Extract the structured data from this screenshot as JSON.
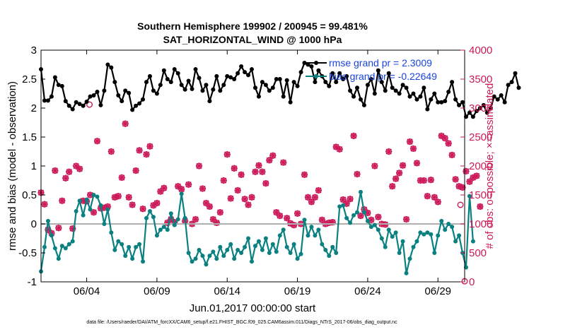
{
  "chart_data": {
    "type": "line",
    "title": "Southern Hemisphere 199902 / 200945 = 99.481%",
    "subtitle": "SAT_HORIZONTAL_WIND @ 1000 hPa",
    "xlabel": "Jun.01,2017 00:00:00 start",
    "ylabel_left": "rmse and bias (model - observation)",
    "ylabel_right": "# of obs: o=possible; ×=assimilated",
    "xlim": [
      0.75,
      30.9
    ],
    "ylim_left": [
      -1,
      3
    ],
    "ylim_right": [
      0,
      4000
    ],
    "x_ticks": [
      4,
      9,
      14,
      19,
      24,
      29
    ],
    "x_tick_labels": [
      "06/04",
      "06/09",
      "06/14",
      "06/19",
      "06/24",
      "06/29"
    ],
    "y_ticks_left": [
      -1,
      -0.5,
      0,
      0.5,
      1,
      1.5,
      2,
      2.5,
      3
    ],
    "y_tick_labels_left": [
      "-1",
      "-0.5",
      "0",
      "0.5",
      "1",
      "1.5",
      "2",
      "2.5",
      "3"
    ],
    "y_ticks_right": [
      0,
      500,
      1000,
      1500,
      2000,
      2500,
      3000,
      3500,
      4000
    ],
    "y_tick_labels_right": [
      "0",
      "500",
      "1000",
      "1500",
      "2000",
      "2500",
      "3000",
      "3500",
      "4000"
    ],
    "zero_line": 0,
    "legend": [
      {
        "label": "rmse grand pr = 2.3009",
        "color": "#000000"
      },
      {
        "label": "bias grand pr = -0.22649",
        "color": "#0a8080"
      }
    ],
    "legend_position": "top-right",
    "footer": "data file: /Users/raeder/DAI/ATM_forcXX/CAM6_setup/f.e21.FHIST_BGC.f09_025.CAM6assim.011/Diags_NTrS_2017-06/obs_diag_output.nc",
    "colors": {
      "rmse": "#000000",
      "bias": "#0a8080",
      "obs": "#cc1a5a",
      "zero_line": "#b0b0b0"
    },
    "x_start": 0.75,
    "x_step": 0.25,
    "series": [
      {
        "name": "rmse",
        "axis": "left",
        "values": [
          2.67,
          2.13,
          2.13,
          2.2,
          2.53,
          2.4,
          2.38,
          2.12,
          2.04,
          1.98,
          2.1,
          2.07,
          2.04,
          2.11,
          2.2,
          2.22,
          2.28,
          2.05,
          2.3,
          2.75,
          2.7,
          2.45,
          2.22,
          2.12,
          2.3,
          2.26,
          1.97,
          2.04,
          2.08,
          2.15,
          2.45,
          2.55,
          2.3,
          2.25,
          2.4,
          2.65,
          2.5,
          2.45,
          2.67,
          2.6,
          2.4,
          2.32,
          2.47,
          2.33,
          2.67,
          2.52,
          2.3,
          2.4,
          2.12,
          2.32,
          2.55,
          2.3,
          2.4,
          2.55,
          2.53,
          2.5,
          2.6,
          2.72,
          2.62,
          2.57,
          2.67,
          2.35,
          2.2,
          2.45,
          2.4,
          2.3,
          2.35,
          2.5,
          2.5,
          2.2,
          2.48,
          2.1,
          2.45,
          2.38,
          2.62,
          2.78,
          2.75,
          2.72,
          2.45,
          2.65,
          2.55,
          2.45,
          2.38,
          2.6,
          2.45,
          2.6,
          2.5,
          2.55,
          2.3,
          2.2,
          2.35,
          2.15,
          2.05,
          2.4,
          2.5,
          2.25,
          2.65,
          2.45,
          2.3,
          2.6,
          2.35,
          2.3,
          2.25,
          2.4,
          2.35,
          2.2,
          2.25,
          2.15,
          2.2,
          2.35,
          1.98,
          2.15,
          2.25,
          2.1,
          2.1,
          2.12,
          2.28,
          2.45,
          2.15,
          2.05,
          2.1,
          1.85,
          1.92,
          1.85,
          1.95,
          2.0,
          2.05,
          1.92,
          2.0,
          2.2,
          2.15,
          2.22,
          2.1,
          2.4,
          2.45,
          2.6,
          2.35
        ]
      },
      {
        "name": "bias",
        "axis": "left",
        "values": [
          -0.82,
          -0.4,
          0.05,
          -0.2,
          -0.42,
          -0.6,
          -0.38,
          -0.42,
          -0.35,
          -0.3,
          0.22,
          0.4,
          0.15,
          0.42,
          0.25,
          0.5,
          0.47,
          0.32,
          0.0,
          0.25,
          -0.15,
          -0.45,
          -0.3,
          -0.35,
          -0.55,
          -0.4,
          -0.6,
          -0.4,
          -0.35,
          -0.65,
          0.1,
          0.22,
          0.12,
          -0.2,
          -0.1,
          -0.05,
          -0.1,
          0.18,
          -0.02,
          0.08,
          0.52,
          0.1,
          -0.5,
          -0.65,
          -0.6,
          -0.45,
          -0.55,
          -0.7,
          -0.55,
          -0.48,
          -0.6,
          -0.4,
          -0.55,
          -0.45,
          -0.35,
          -0.6,
          -0.45,
          -0.5,
          -0.4,
          -0.25,
          -0.65,
          -0.38,
          -0.3,
          -0.45,
          -0.25,
          -0.5,
          -0.35,
          -0.48,
          -0.2,
          -0.1,
          -0.4,
          -0.5,
          -0.35,
          -0.6,
          -0.52,
          0.07,
          -0.2,
          -0.05,
          -0.2,
          -0.1,
          -0.35,
          -0.45,
          -0.55,
          -0.4,
          -0.5,
          0.3,
          0.32,
          0.1,
          0.02,
          0.15,
          0.2,
          0.55,
          0.2,
          0.05,
          -0.05,
          -0.02,
          -0.1,
          -0.25,
          -0.4,
          -0.1,
          -0.22,
          -0.15,
          -0.5,
          -0.3,
          -0.85,
          -0.6,
          -0.4,
          -0.3,
          -0.15,
          -0.18,
          -0.15,
          -0.18,
          -0.5,
          -0.2,
          0.05,
          -0.1,
          0.0,
          -0.05,
          -0.3,
          -0.2,
          -0.5,
          -0.75,
          0.48,
          -0.3
        ]
      },
      {
        "name": "obs_possible",
        "axis": "right",
        "marker": "o",
        "values": [
          1540,
          1340,
          900,
          840,
          1920,
          930,
          1400,
          1790,
          1900,
          920,
          2000,
          1950,
          1400,
          1390,
          1500,
          1200,
          2430,
          1270,
          1280,
          1300,
          2250,
          1460,
          1480,
          1800,
          2730,
          1460,
          1330,
          1920,
          2270,
          1260,
          2200,
          2340,
          1320,
          1360,
          1560,
          1620,
          1020,
          1080,
          1030,
          1650,
          1600,
          1050,
          1680,
          1000,
          1080,
          2000,
          1610,
          1360,
          1300,
          1080,
          1020,
          1200,
          1750,
          2200,
          1440,
          1960,
          1580,
          1850,
          1430,
          1330,
          1460,
          1900,
          2010,
          1900,
          1700,
          2100,
          2180,
          1200,
          1140,
          2060,
          1100,
          1010,
          980,
          1180,
          1000,
          1850,
          1460,
          1380,
          1460,
          1580,
          1070,
          1000,
          1020,
          1030,
          2330,
          2290,
          1420,
          1350,
          1430,
          2520,
          1860,
          1140,
          1250,
          1190,
          1070,
          2000,
          1120,
          1000,
          990,
          2250,
          1650,
          1780,
          1880,
          2010,
          1080,
          2420,
          2300,
          2050,
          1750,
          1750,
          1480,
          1760,
          1460,
          1380,
          2520,
          2480,
          2390,
          2190,
          1770,
          1650,
          1630,
          1910,
          1730,
          1800,
          1830,
          1300
        ]
      },
      {
        "name": "obs_assimilated",
        "axis": "right",
        "marker": "x",
        "values": [
          1540,
          1340,
          900,
          840,
          1920,
          930,
          1400,
          1790,
          1900,
          920,
          2000,
          1950,
          1400,
          1390,
          1500,
          1200,
          2430,
          1270,
          1280,
          1300,
          2250,
          1460,
          1480,
          1800,
          2730,
          1460,
          1330,
          1920,
          2270,
          1260,
          2200,
          2340,
          1320,
          1360,
          1560,
          1620,
          1020,
          1080,
          1030,
          1650,
          1600,
          1050,
          1680,
          1000,
          1080,
          2000,
          1610,
          1360,
          1300,
          1080,
          1020,
          1200,
          1750,
          2200,
          1440,
          1960,
          1580,
          1850,
          1430,
          1330,
          1460,
          1900,
          2010,
          1900,
          1700,
          2100,
          2180,
          1200,
          1140,
          2060,
          1100,
          1010,
          980,
          1180,
          1000,
          1850,
          1460,
          1380,
          1460,
          1580,
          1070,
          1000,
          1020,
          1030,
          2330,
          2290,
          1420,
          1350,
          1430,
          2520,
          1860,
          1140,
          1250,
          1190,
          1070,
          2000,
          1120,
          1000,
          990,
          2250,
          1650,
          1780,
          1880,
          2010,
          1080,
          2420,
          2300,
          2050,
          1750,
          1750,
          1480,
          1760,
          1460,
          1380,
          2520,
          2480,
          2390,
          2190,
          1770,
          1650,
          1630,
          1910,
          1730,
          1800,
          1830,
          1300
        ]
      }
    ],
    "extra_points": [
      {
        "series": "obs_possible",
        "x": 4.2,
        "y": 3060
      },
      {
        "series": "obs_possible",
        "x": 30.9,
        "y": 10
      },
      {
        "series": "obs_possible",
        "x": 30.6,
        "y": 1330
      }
    ]
  }
}
